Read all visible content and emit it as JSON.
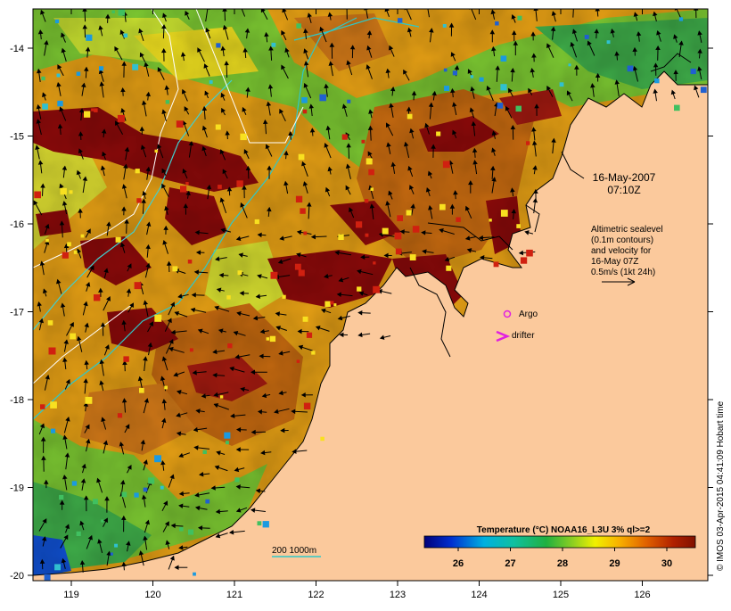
{
  "map": {
    "date_line": "16-May-2007",
    "time_line": "07:10Z",
    "legend_lines": [
      "Altimetric sealevel",
      "(0.1m contours)",
      "and velocity for",
      "16-May 07Z",
      "0.5m/s (1kt 24h)"
    ],
    "argo_label": "Argo",
    "drifter_label": "drifter",
    "depth_label": "200  1000m",
    "colorbar_title": "Temperature (°C) NOAA16_L3U 3% ql>=2",
    "colorbar_ticks": [
      "26",
      "27",
      "28",
      "29",
      "30"
    ],
    "credit": "© IMOS 03-Apr-2015 04:41:09 Hobart time",
    "x_ticks": [
      "119",
      "120",
      "121",
      "122",
      "123",
      "124",
      "125",
      "126"
    ],
    "y_ticks": [
      "-14",
      "-15",
      "-16",
      "-17",
      "-18",
      "-19",
      "-20"
    ],
    "colors": {
      "land": "#fbc99c",
      "hot": "#8b0a0a",
      "warm": "#d9780f",
      "mid": "#f0b020",
      "cool": "#b8e02a",
      "cold": "#2aa84a",
      "argo": "#e020e0"
    }
  }
}
